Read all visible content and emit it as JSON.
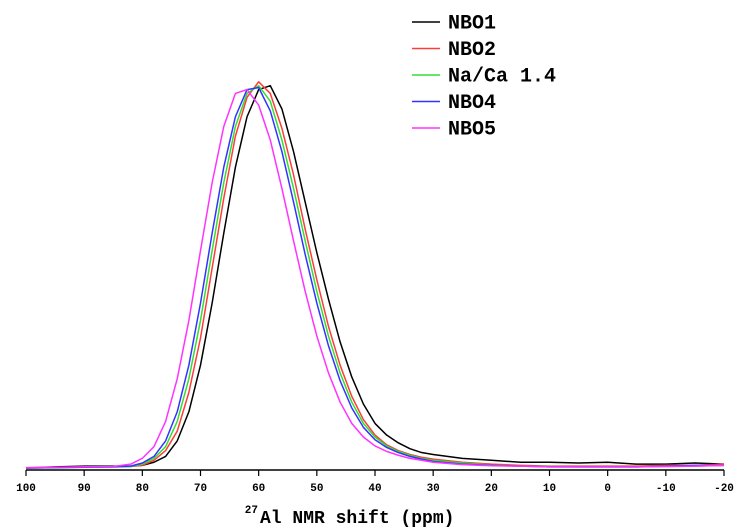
{
  "chart_data": {
    "type": "line",
    "xlabel_isotope": "27",
    "xlabel": "Al NMR shift (ppm)",
    "x": [
      100,
      95,
      90,
      85,
      82,
      80,
      78,
      76,
      74,
      72,
      70,
      68,
      66,
      64,
      62,
      60,
      58,
      56,
      54,
      52,
      50,
      48,
      46,
      44,
      42,
      40,
      38,
      36,
      34,
      32,
      30,
      25,
      20,
      15,
      10,
      5,
      0,
      -5,
      -10,
      -15,
      -20
    ],
    "series": [
      {
        "name": "NBO1",
        "color": "#000000",
        "values": [
          0.005,
          0.008,
          0.01,
          0.01,
          0.01,
          0.012,
          0.02,
          0.035,
          0.075,
          0.15,
          0.27,
          0.43,
          0.61,
          0.78,
          0.91,
          0.98,
          0.99,
          0.93,
          0.82,
          0.69,
          0.56,
          0.44,
          0.33,
          0.24,
          0.17,
          0.12,
          0.09,
          0.07,
          0.055,
          0.045,
          0.04,
          0.03,
          0.025,
          0.02,
          0.02,
          0.018,
          0.02,
          0.015,
          0.015,
          0.018,
          0.015
        ]
      },
      {
        "name": "NBO2",
        "color": "#ff3b3b",
        "values": [
          0.005,
          0.006,
          0.008,
          0.008,
          0.009,
          0.012,
          0.025,
          0.05,
          0.1,
          0.2,
          0.34,
          0.52,
          0.7,
          0.86,
          0.96,
          1.0,
          0.97,
          0.88,
          0.76,
          0.62,
          0.49,
          0.37,
          0.27,
          0.19,
          0.13,
          0.09,
          0.065,
          0.05,
          0.04,
          0.033,
          0.028,
          0.02,
          0.015,
          0.012,
          0.01,
          0.01,
          0.01,
          0.01,
          0.012,
          0.012,
          0.015
        ]
      },
      {
        "name": "Na/Ca 1.4",
        "color": "#33dd33",
        "values": [
          0.005,
          0.006,
          0.007,
          0.008,
          0.009,
          0.015,
          0.03,
          0.06,
          0.125,
          0.235,
          0.385,
          0.565,
          0.74,
          0.885,
          0.97,
          0.99,
          0.95,
          0.85,
          0.725,
          0.59,
          0.46,
          0.345,
          0.25,
          0.175,
          0.12,
          0.085,
          0.062,
          0.048,
          0.038,
          0.03,
          0.025,
          0.018,
          0.013,
          0.01,
          0.009,
          0.008,
          0.008,
          0.008,
          0.009,
          0.01,
          0.012
        ]
      },
      {
        "name": "NBO4",
        "color": "#3333ff",
        "values": [
          0.005,
          0.006,
          0.007,
          0.008,
          0.01,
          0.018,
          0.035,
          0.075,
          0.15,
          0.27,
          0.43,
          0.61,
          0.78,
          0.91,
          0.98,
          0.985,
          0.925,
          0.82,
          0.69,
          0.555,
          0.43,
          0.32,
          0.23,
          0.16,
          0.11,
          0.078,
          0.058,
          0.045,
          0.035,
          0.028,
          0.022,
          0.015,
          0.012,
          0.01,
          0.008,
          0.008,
          0.008,
          0.008,
          0.01,
          0.012,
          0.012
        ]
      },
      {
        "name": "NBO5",
        "color": "#ff33ff",
        "values": [
          0.006,
          0.007,
          0.008,
          0.009,
          0.015,
          0.03,
          0.06,
          0.125,
          0.235,
          0.385,
          0.565,
          0.74,
          0.885,
          0.97,
          0.98,
          0.94,
          0.85,
          0.725,
          0.59,
          0.46,
          0.345,
          0.25,
          0.175,
          0.12,
          0.085,
          0.062,
          0.048,
          0.038,
          0.03,
          0.025,
          0.02,
          0.014,
          0.011,
          0.01,
          0.008,
          0.008,
          0.008,
          0.008,
          0.009,
          0.01,
          0.012
        ]
      }
    ],
    "xlim": [
      100,
      -20
    ],
    "xticks": [
      100,
      90,
      80,
      70,
      60,
      50,
      40,
      30,
      20,
      10,
      0,
      -10,
      -20
    ],
    "ylim": [
      0,
      1.1
    ],
    "legend": "upper-right"
  }
}
